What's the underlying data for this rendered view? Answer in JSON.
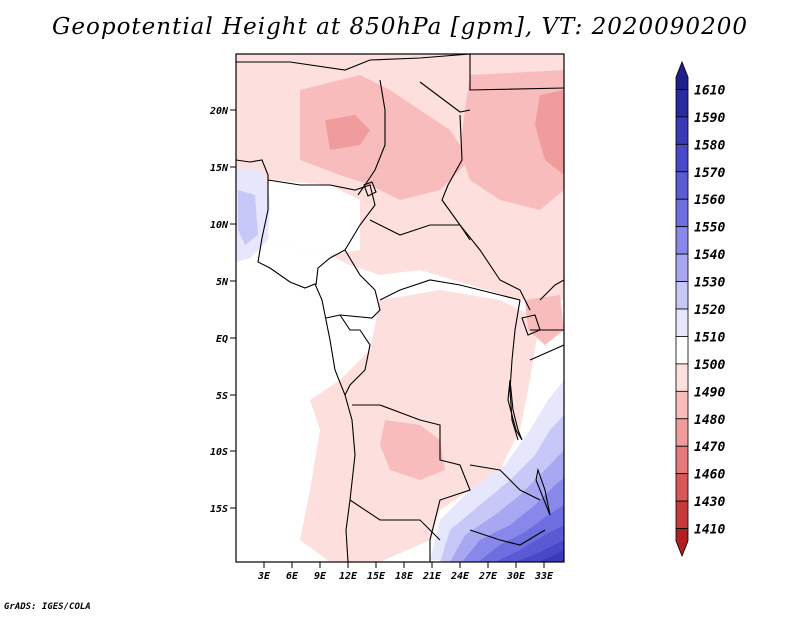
{
  "title": "Geopotential Height at 850hPa [gpm], VT: 2020090200",
  "credit": "GrADS: IGES/COLA",
  "map": {
    "lat_labels": [
      "20N",
      "15N",
      "10N",
      "5N",
      "EQ",
      "5S",
      "10S",
      "15S"
    ],
    "lon_labels": [
      "3E",
      "6E",
      "9E",
      "12E",
      "15E",
      "18E",
      "21E",
      "24E",
      "27E",
      "30E",
      "33E"
    ]
  },
  "colorbar": {
    "levels": [
      "1610",
      "1590",
      "1580",
      "1570",
      "1560",
      "1550",
      "1540",
      "1530",
      "1520",
      "1510",
      "1500",
      "1490",
      "1480",
      "1470",
      "1460",
      "1430",
      "1410"
    ],
    "colors": [
      "#1e1e8c",
      "#2a2aa0",
      "#3a3ab8",
      "#4848c8",
      "#5a5ad4",
      "#6e6ee0",
      "#8888ea",
      "#a8a8f2",
      "#c8c8f8",
      "#e6e6fc",
      "#ffffff",
      "#fde0de",
      "#f8bcbc",
      "#f09c9c",
      "#e67a7a",
      "#d85858",
      "#c83a3a",
      "#b02020"
    ]
  }
}
